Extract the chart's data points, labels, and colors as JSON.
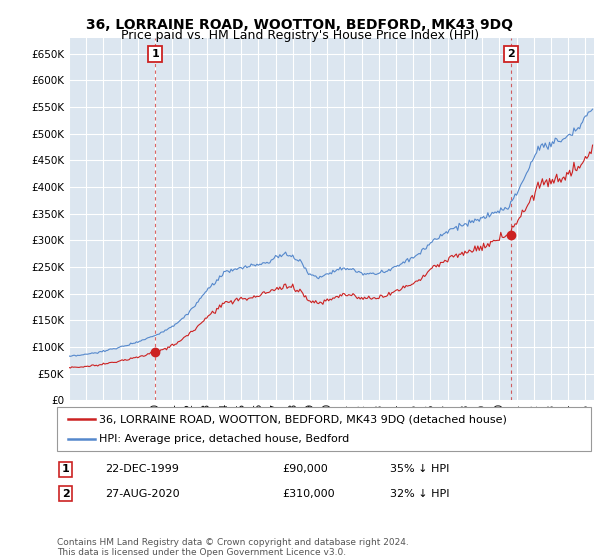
{
  "title": "36, LORRAINE ROAD, WOOTTON, BEDFORD, MK43 9DQ",
  "subtitle": "Price paid vs. HM Land Registry's House Price Index (HPI)",
  "ylim": [
    0,
    680000
  ],
  "yticks": [
    0,
    50000,
    100000,
    150000,
    200000,
    250000,
    300000,
    350000,
    400000,
    450000,
    500000,
    550000,
    600000,
    650000
  ],
  "xlim_start": 1995.0,
  "xlim_end": 2025.5,
  "bg_color": "#dce6f0",
  "grid_color": "#ffffff",
  "hpi_color": "#5588cc",
  "price_color": "#cc2222",
  "sale1_x": 2000.0,
  "sale1_y": 90000,
  "sale1_label": "1",
  "sale2_x": 2020.67,
  "sale2_y": 310000,
  "sale2_label": "2",
  "legend_house": "36, LORRAINE ROAD, WOOTTON, BEDFORD, MK43 9DQ (detached house)",
  "legend_hpi": "HPI: Average price, detached house, Bedford",
  "annotation1_date": "22-DEC-1999",
  "annotation1_price": "£90,000",
  "annotation1_hpi": "35% ↓ HPI",
  "annotation2_date": "27-AUG-2020",
  "annotation2_price": "£310,000",
  "annotation2_hpi": "32% ↓ HPI",
  "footer": "Contains HM Land Registry data © Crown copyright and database right 2024.\nThis data is licensed under the Open Government Licence v3.0.",
  "title_fontsize": 10,
  "subtitle_fontsize": 9,
  "tick_fontsize": 7.5,
  "legend_fontsize": 8,
  "annotation_fontsize": 8
}
